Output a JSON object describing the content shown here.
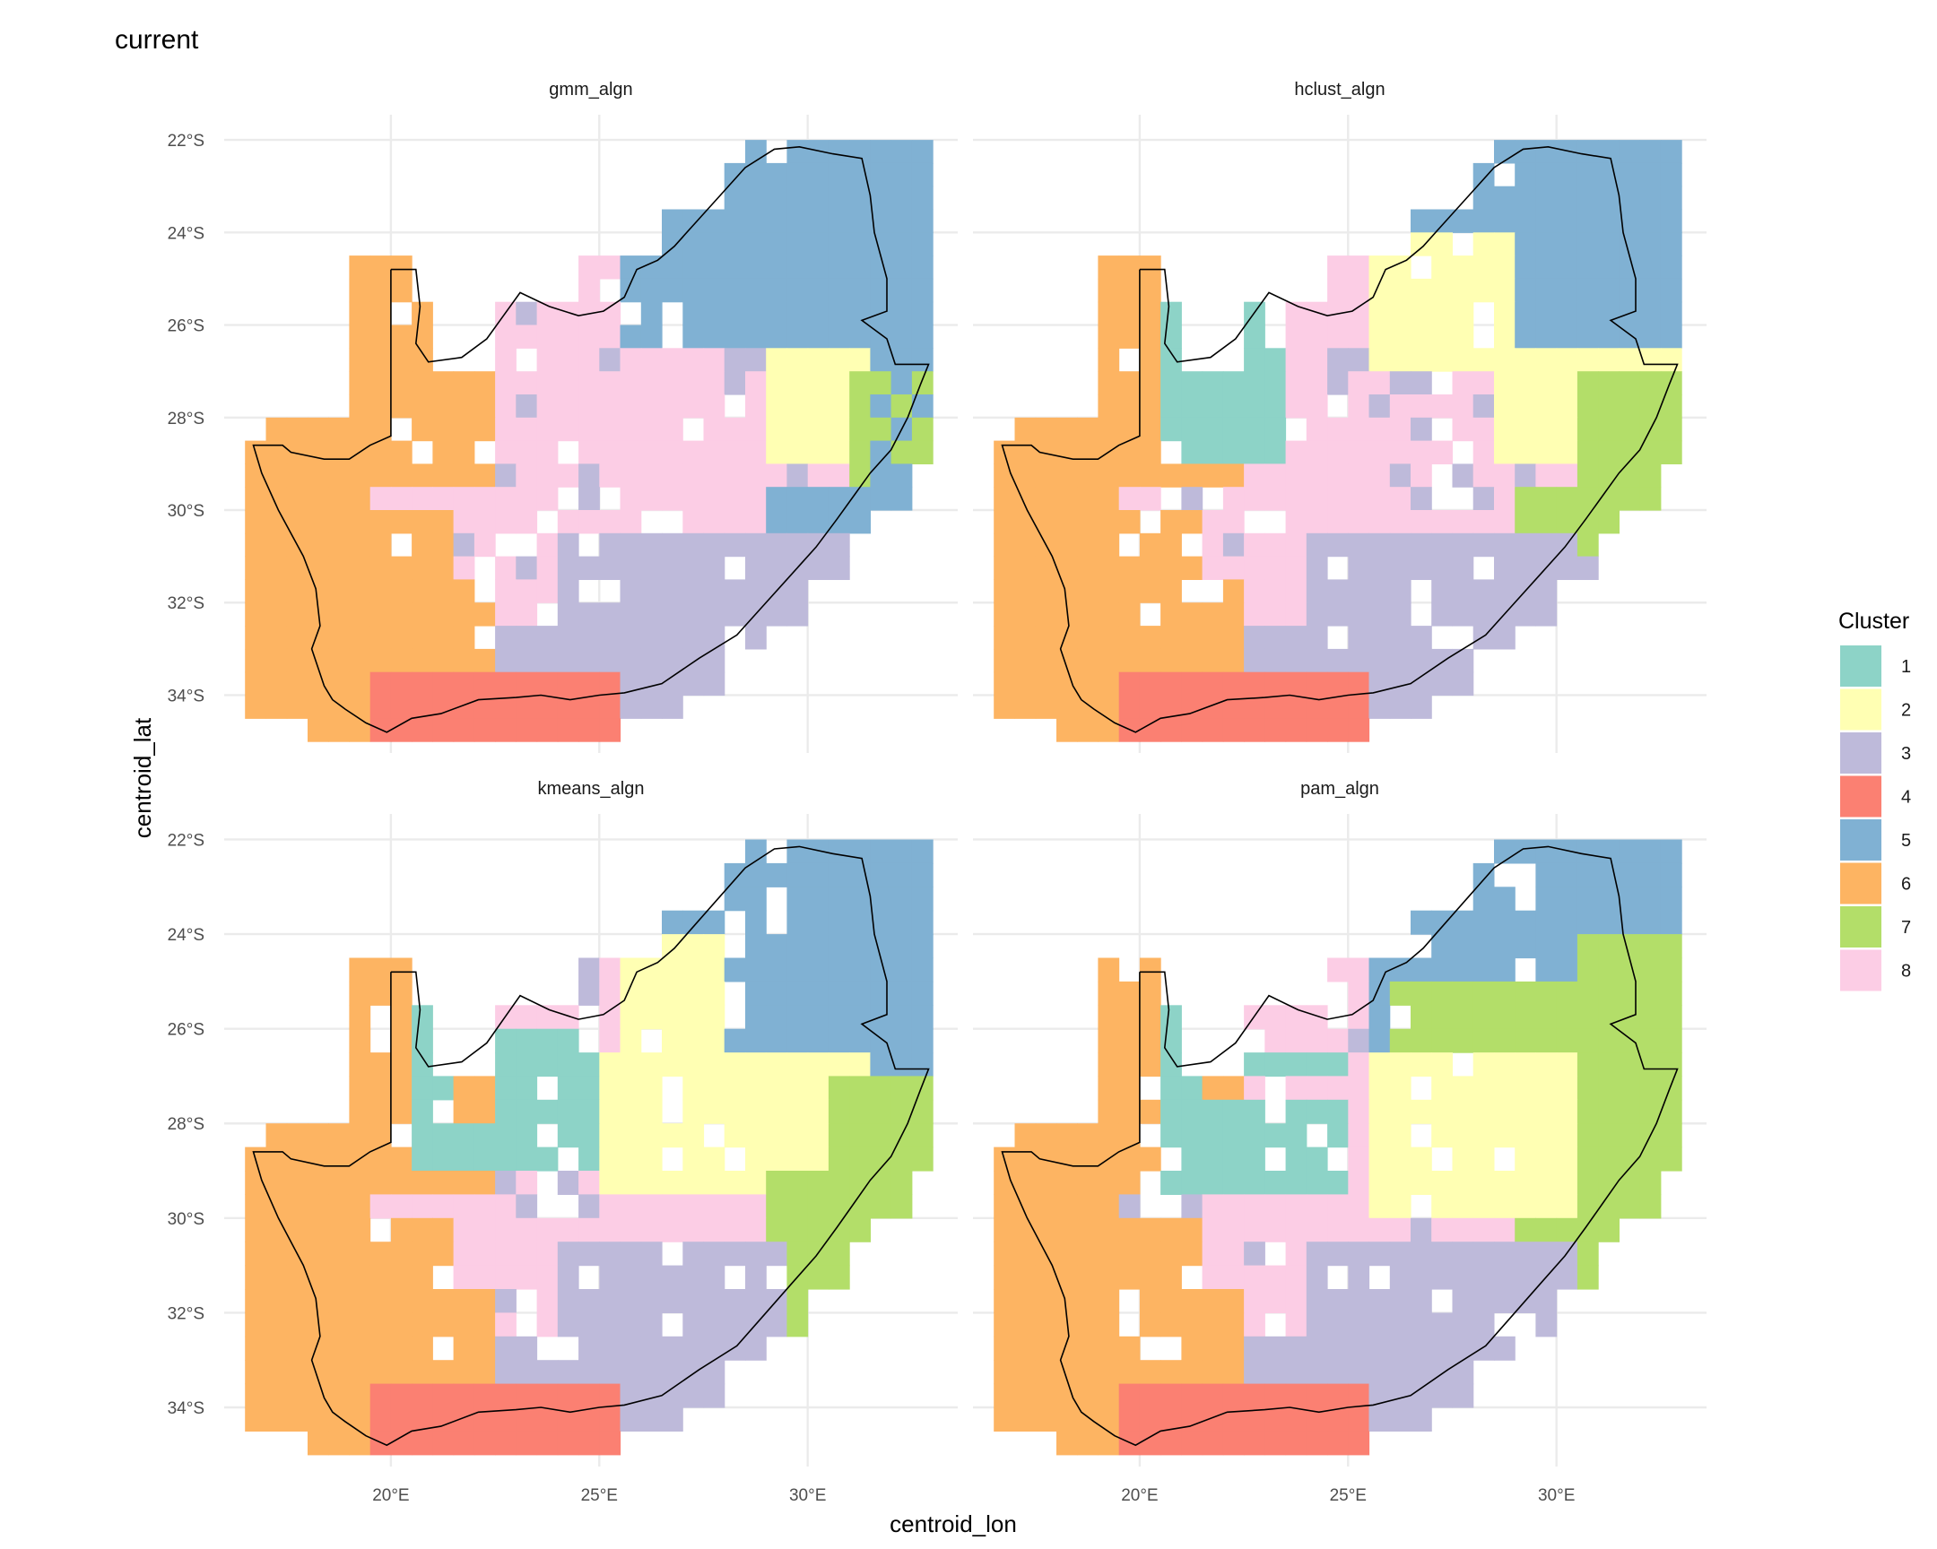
{
  "title": "current",
  "axes": {
    "xlabel": "centroid_lon",
    "ylabel": "centroid_lat",
    "x_ticks": [
      {
        "v": 20,
        "label": "20°E"
      },
      {
        "v": 25,
        "label": "25°E"
      },
      {
        "v": 30,
        "label": "30°E"
      }
    ],
    "y_ticks": [
      {
        "v": -22,
        "label": "22°S"
      },
      {
        "v": -24,
        "label": "24°S"
      },
      {
        "v": -26,
        "label": "26°S"
      },
      {
        "v": -28,
        "label": "28°S"
      },
      {
        "v": -30,
        "label": "30°S"
      },
      {
        "v": -32,
        "label": "32°S"
      },
      {
        "v": -34,
        "label": "34°S"
      }
    ],
    "xlim": [
      16.0,
      33.6
    ],
    "ylim": [
      -35.25,
      -21.65
    ]
  },
  "legend": {
    "title": "Cluster",
    "placement": "right",
    "items": [
      {
        "label": "1",
        "color": "#8DD3C7"
      },
      {
        "label": "2",
        "color": "#FFFFB3"
      },
      {
        "label": "3",
        "color": "#BEBADA"
      },
      {
        "label": "4",
        "color": "#FB8072"
      },
      {
        "label": "5",
        "color": "#80B1D3"
      },
      {
        "label": "6",
        "color": "#FDB462"
      },
      {
        "label": "7",
        "color": "#B3DE69"
      },
      {
        "label": "8",
        "color": "#FCCDE5"
      }
    ]
  },
  "chart_data": {
    "type": "heatmap",
    "description_units": "grid cells of 0.5 degree; lon/lat in degrees",
    "grid": {
      "lon0": 16.25,
      "lat0": -21.75,
      "step": 0.5,
      "cols": 34,
      "rows": 27
    },
    "panels": [
      {
        "title": "gmm_algn"
      },
      {
        "title": "hclust_algn"
      },
      {
        "title": "kmeans_algn"
      },
      {
        "title": "pam_algn"
      }
    ],
    "grid_lines": true
  }
}
